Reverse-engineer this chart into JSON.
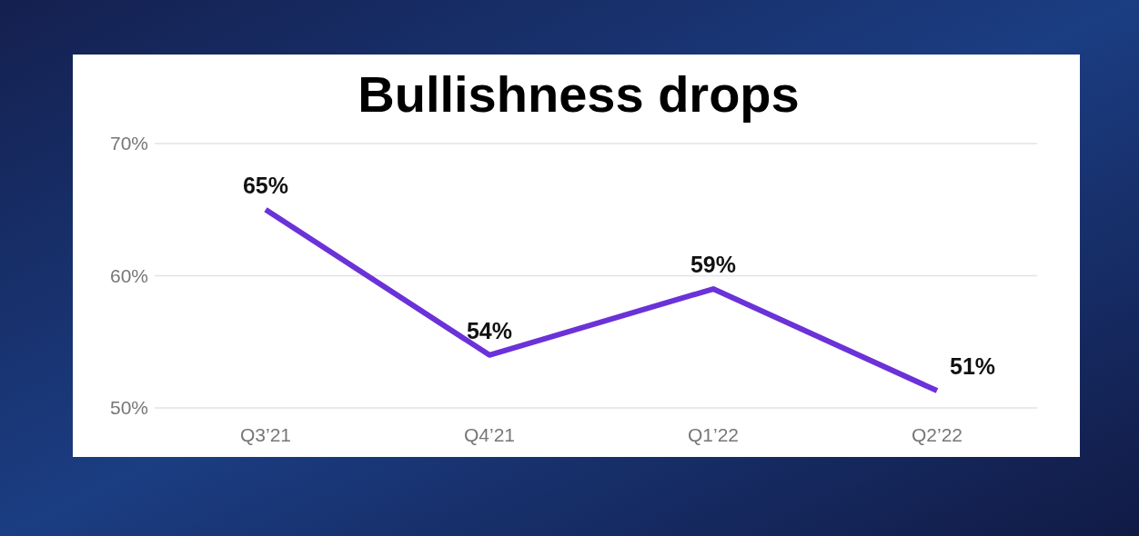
{
  "chart_data": {
    "type": "line",
    "title": "Bullishness drops",
    "categories": [
      "Q3’21",
      "Q4’21",
      "Q1’22",
      "Q2’22"
    ],
    "series": [
      {
        "color": "#6a32d8",
        "values": [
          65,
          54,
          59,
          51.3
        ],
        "value_labels": [
          "65%",
          "54%",
          "59%",
          "51%"
        ]
      }
    ],
    "ylim": [
      50,
      70
    ],
    "yticks": [
      {
        "value": 50,
        "label": "50%"
      },
      {
        "value": 60,
        "label": "60%"
      },
      {
        "value": 70,
        "label": "70%"
      }
    ],
    "grid": "y",
    "marker": "none",
    "line_style": "solid"
  }
}
